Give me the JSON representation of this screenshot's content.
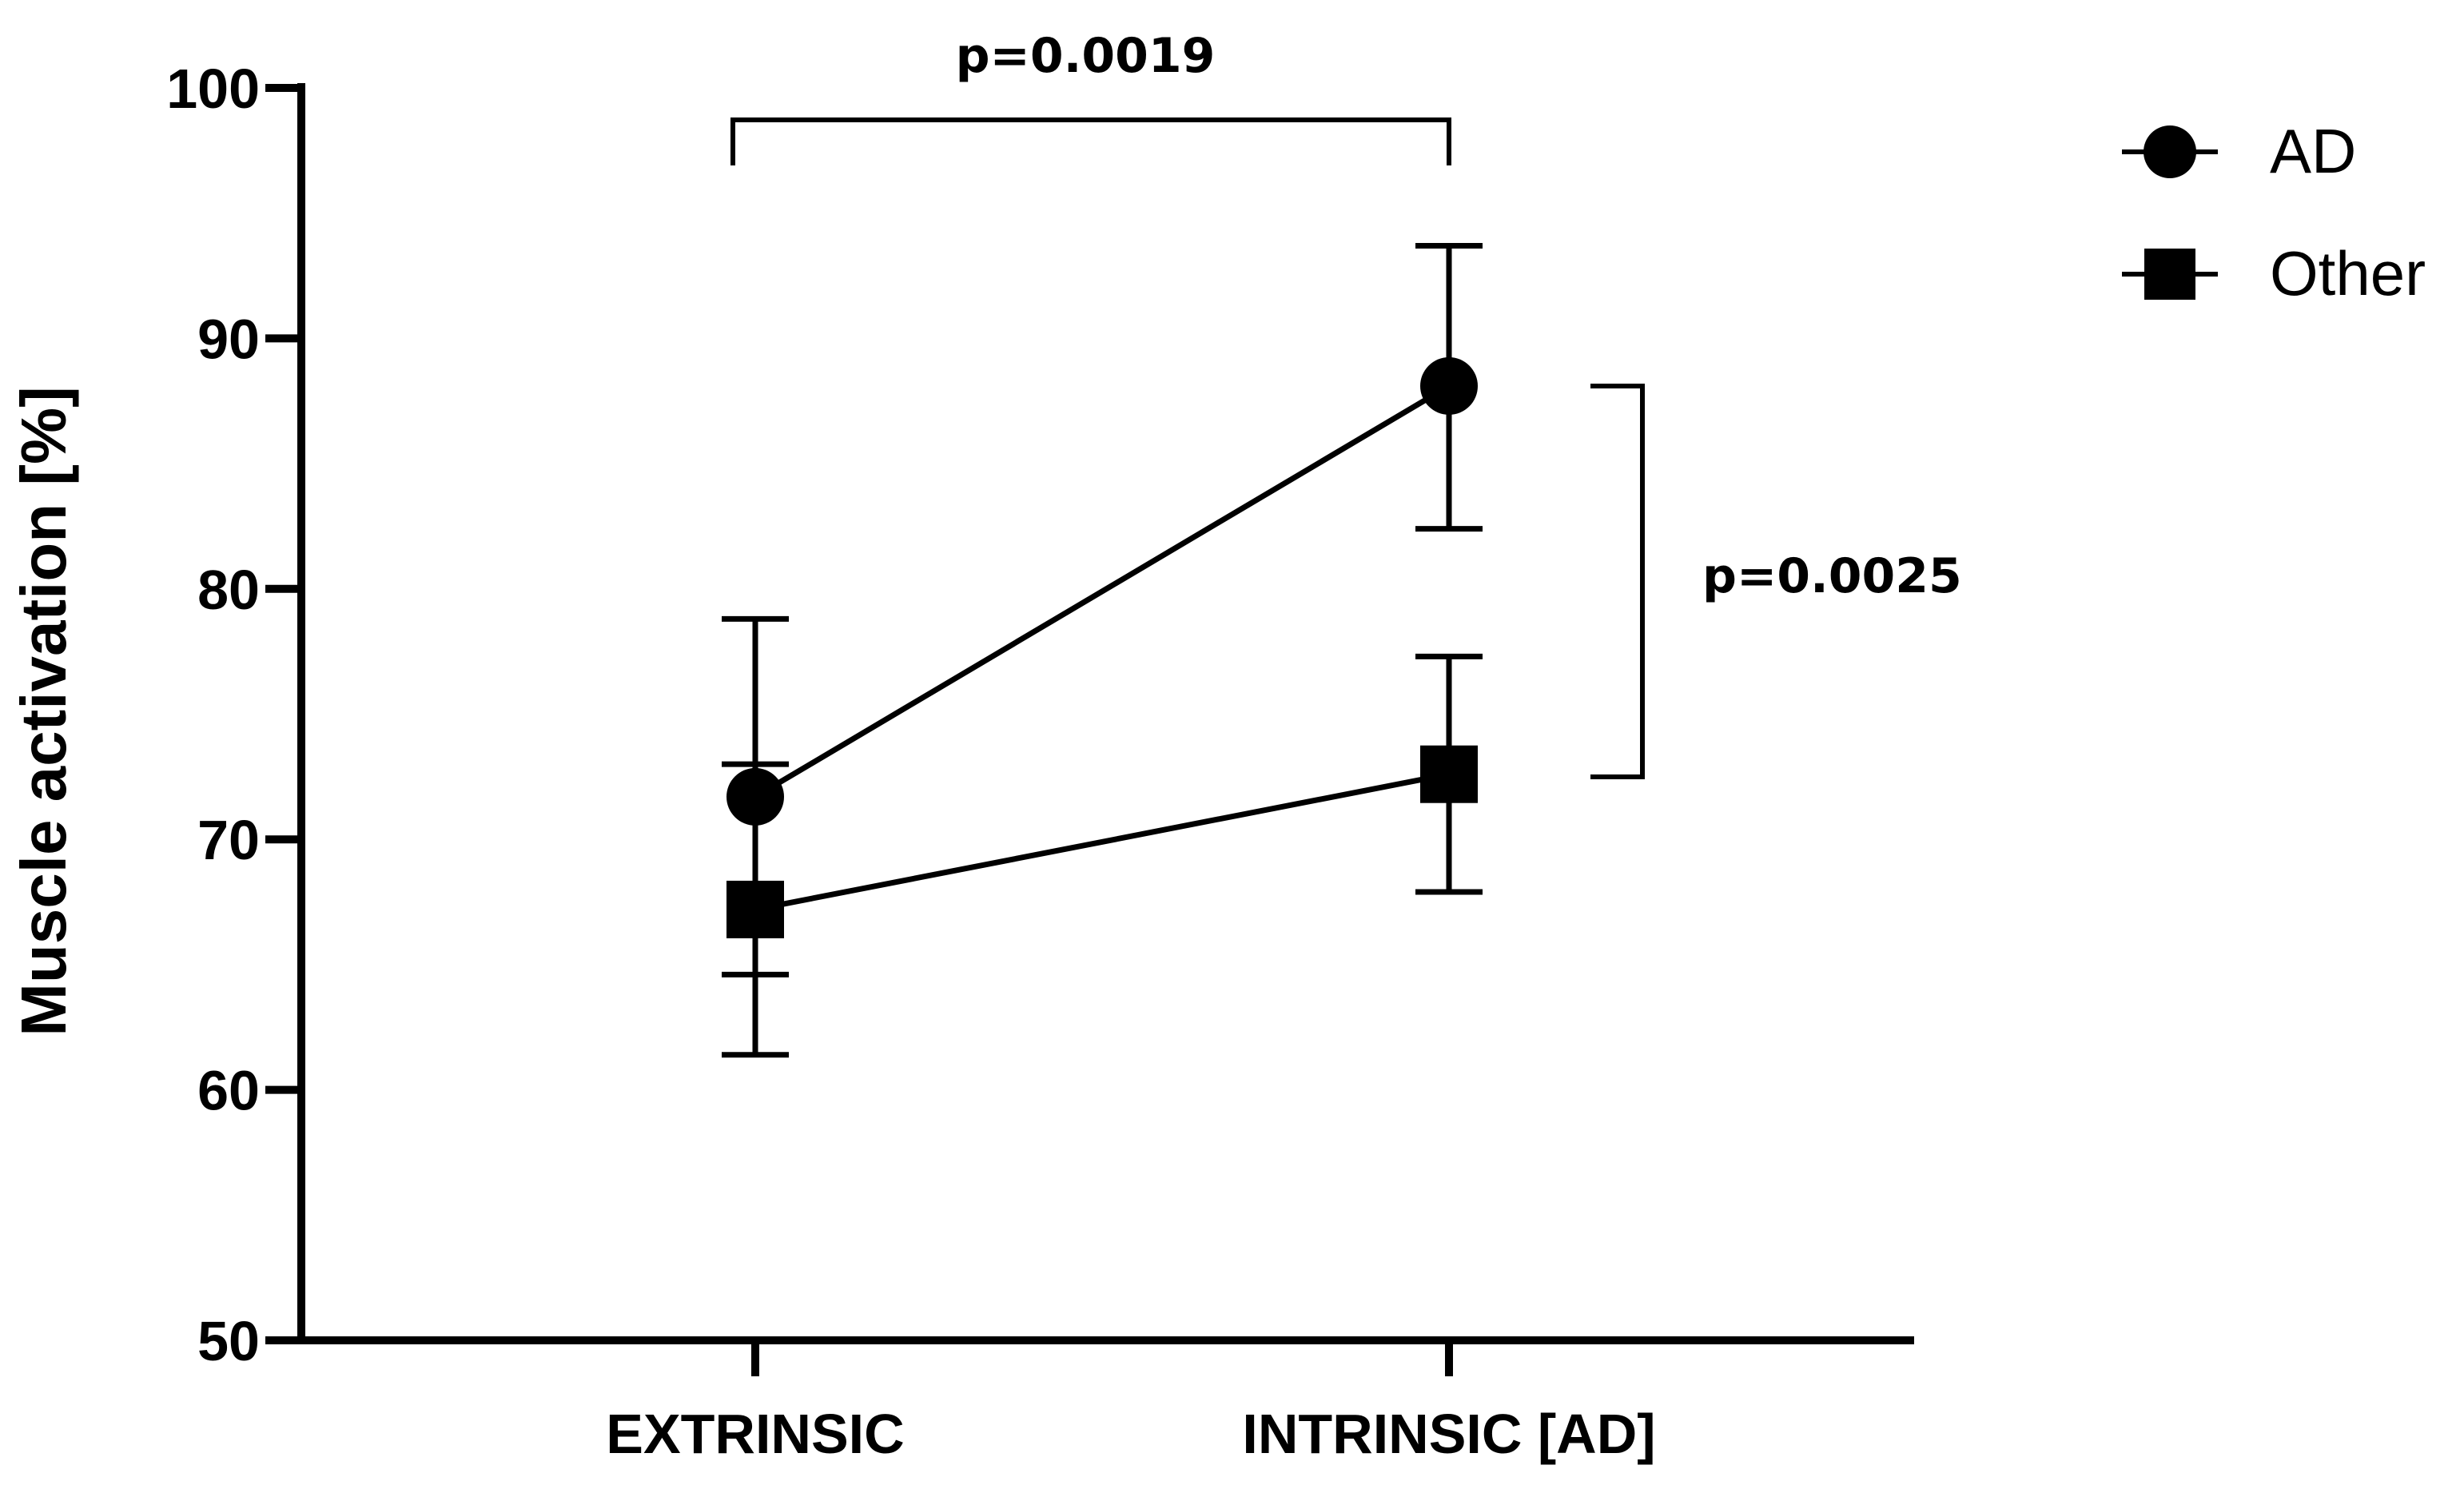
{
  "chart_data": {
    "type": "line",
    "ylabel": "Muscle activation [%]",
    "xlabel": "",
    "categories": [
      "EXTRINSIC",
      "INTRINSIC [AD]"
    ],
    "ylim": [
      50,
      100
    ],
    "yticks": [
      "50",
      "60",
      "70",
      "80",
      "90",
      "100"
    ],
    "series": [
      {
        "name": "AD",
        "marker": "circle",
        "values": [
          71.7,
          88.1
        ],
        "error_low": [
          64.6,
          82.4
        ],
        "error_high": [
          78.8,
          93.7
        ]
      },
      {
        "name": "Other",
        "marker": "square",
        "values": [
          67.2,
          72.6
        ],
        "error_low": [
          61.4,
          67.9
        ],
        "error_high": [
          73.0,
          77.3
        ]
      }
    ],
    "annotations": {
      "between_conditions": "p=0.0019",
      "between_groups": "p=0.0025"
    },
    "grid": false,
    "legend_position": "top-right",
    "color": "#000000"
  }
}
